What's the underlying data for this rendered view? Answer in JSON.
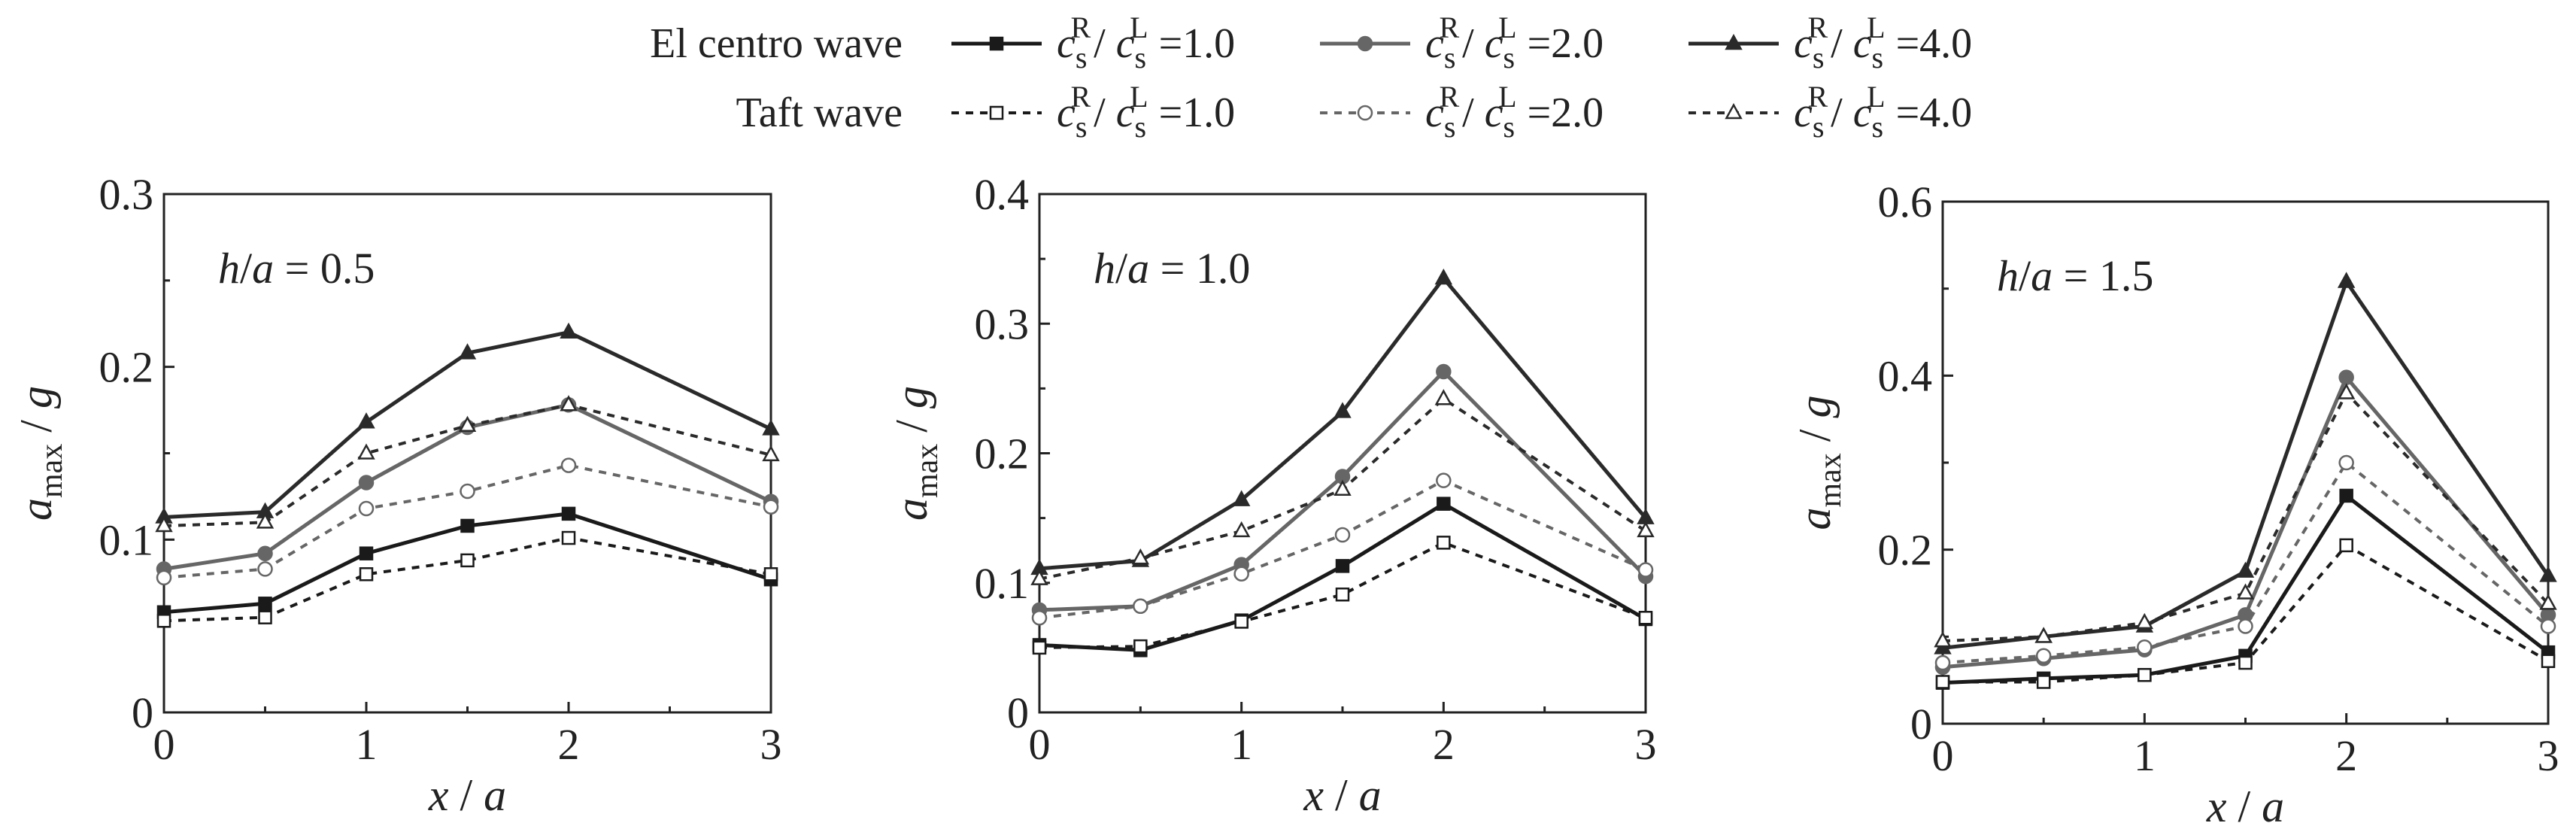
{
  "legend": {
    "groups": [
      {
        "label": "El  centro wave",
        "dashed": false,
        "entries": [
          {
            "marker": "square",
            "filled": true,
            "color": "#1a1a1a",
            "ratio": "1.0"
          },
          {
            "marker": "circle",
            "filled": true,
            "color": "#666666",
            "ratio": "2.0"
          },
          {
            "marker": "triangle",
            "filled": true,
            "color": "#2a2a2a",
            "ratio": "4.0"
          }
        ]
      },
      {
        "label": "Taft wave",
        "dashed": true,
        "entries": [
          {
            "marker": "square",
            "filled": false,
            "color": "#1a1a1a",
            "ratio": "1.0"
          },
          {
            "marker": "circle",
            "filled": false,
            "color": "#666666",
            "ratio": "2.0"
          },
          {
            "marker": "triangle",
            "filled": false,
            "color": "#2a2a2a",
            "ratio": "4.0"
          }
        ]
      }
    ],
    "ratio_text": {
      "c": "c",
      "sub": "s",
      "sup_num": "R",
      "sup_den": "L",
      "slash": "/",
      "eq": "="
    }
  },
  "chart_data": [
    {
      "type": "line",
      "annotation": "h/a = 0.5",
      "xlabel": "x / a",
      "ylabel": "a_max / g",
      "xlim": [
        0,
        3
      ],
      "ylim": [
        0,
        0.3
      ],
      "xticks": [
        0,
        1,
        2,
        3
      ],
      "xtick_labels": [
        "0",
        "1",
        "2",
        "3"
      ],
      "yticks": [
        0,
        0.1,
        0.2,
        0.3
      ],
      "ytick_labels": [
        "0",
        "0.1",
        "0.2",
        "0.3"
      ],
      "x": [
        0,
        0.5,
        1,
        1.5,
        2,
        3
      ],
      "series": [
        {
          "group": "El centro wave",
          "ratio": "1.0",
          "values": [
            0.058,
            0.063,
            0.092,
            0.108,
            0.115,
            0.077
          ]
        },
        {
          "group": "El centro wave",
          "ratio": "2.0",
          "values": [
            0.083,
            0.092,
            0.133,
            0.165,
            0.178,
            0.122
          ]
        },
        {
          "group": "El centro wave",
          "ratio": "4.0",
          "values": [
            0.113,
            0.116,
            0.168,
            0.208,
            0.22,
            0.164
          ]
        },
        {
          "group": "Taft wave",
          "ratio": "1.0",
          "values": [
            0.053,
            0.055,
            0.08,
            0.088,
            0.101,
            0.08
          ]
        },
        {
          "group": "Taft wave",
          "ratio": "2.0",
          "values": [
            0.078,
            0.083,
            0.118,
            0.128,
            0.143,
            0.119
          ]
        },
        {
          "group": "Taft wave",
          "ratio": "4.0",
          "values": [
            0.108,
            0.11,
            0.15,
            0.166,
            0.178,
            0.149
          ]
        }
      ]
    },
    {
      "type": "line",
      "annotation": "h/a = 1.0",
      "xlabel": "x / a",
      "ylabel": "a_max / g",
      "xlim": [
        0,
        3
      ],
      "ylim": [
        0,
        0.4
      ],
      "xticks": [
        0,
        1,
        2,
        3
      ],
      "xtick_labels": [
        "0",
        "1",
        "2",
        "3"
      ],
      "yticks": [
        0,
        0.1,
        0.2,
        0.3,
        0.4
      ],
      "ytick_labels": [
        "0",
        "0.1",
        "0.2",
        "0.3",
        "0.4"
      ],
      "x": [
        0,
        0.5,
        1,
        1.5,
        2,
        3
      ],
      "series": [
        {
          "group": "El centro wave",
          "ratio": "1.0",
          "values": [
            0.052,
            0.048,
            0.071,
            0.113,
            0.161,
            0.072
          ]
        },
        {
          "group": "El centro wave",
          "ratio": "2.0",
          "values": [
            0.079,
            0.082,
            0.114,
            0.182,
            0.263,
            0.105
          ]
        },
        {
          "group": "El centro wave",
          "ratio": "4.0",
          "values": [
            0.111,
            0.117,
            0.164,
            0.232,
            0.335,
            0.15
          ]
        },
        {
          "group": "Taft wave",
          "ratio": "1.0",
          "values": [
            0.05,
            0.051,
            0.07,
            0.091,
            0.131,
            0.073
          ]
        },
        {
          "group": "Taft wave",
          "ratio": "2.0",
          "values": [
            0.073,
            0.082,
            0.107,
            0.137,
            0.179,
            0.11
          ]
        },
        {
          "group": "Taft wave",
          "ratio": "4.0",
          "values": [
            0.103,
            0.119,
            0.14,
            0.172,
            0.242,
            0.14
          ]
        }
      ]
    },
    {
      "type": "line",
      "annotation": "h/a = 1.5",
      "xlabel": "x / a",
      "ylabel": "a_max / g",
      "xlim": [
        0,
        3
      ],
      "ylim": [
        0,
        0.6
      ],
      "xticks": [
        0,
        1,
        2,
        3
      ],
      "xtick_labels": [
        "0",
        "1",
        "2",
        "3"
      ],
      "yticks": [
        0,
        0.2,
        0.4,
        0.6
      ],
      "ytick_labels": [
        "0",
        "0.2",
        "0.4",
        "0.6"
      ],
      "x": [
        0,
        0.5,
        1,
        1.5,
        2,
        3
      ],
      "series": [
        {
          "group": "El centro wave",
          "ratio": "1.0",
          "values": [
            0.047,
            0.052,
            0.056,
            0.078,
            0.262,
            0.082
          ]
        },
        {
          "group": "El centro wave",
          "ratio": "2.0",
          "values": [
            0.065,
            0.075,
            0.085,
            0.125,
            0.398,
            0.125
          ]
        },
        {
          "group": "El centro wave",
          "ratio": "4.0",
          "values": [
            0.087,
            0.1,
            0.112,
            0.175,
            0.508,
            0.17
          ]
        },
        {
          "group": "Taft wave",
          "ratio": "1.0",
          "values": [
            0.048,
            0.048,
            0.056,
            0.07,
            0.205,
            0.072
          ]
        },
        {
          "group": "Taft wave",
          "ratio": "2.0",
          "values": [
            0.07,
            0.078,
            0.088,
            0.112,
            0.3,
            0.112
          ]
        },
        {
          "group": "Taft wave",
          "ratio": "4.0",
          "values": [
            0.095,
            0.1,
            0.116,
            0.15,
            0.38,
            0.138
          ]
        }
      ]
    }
  ]
}
